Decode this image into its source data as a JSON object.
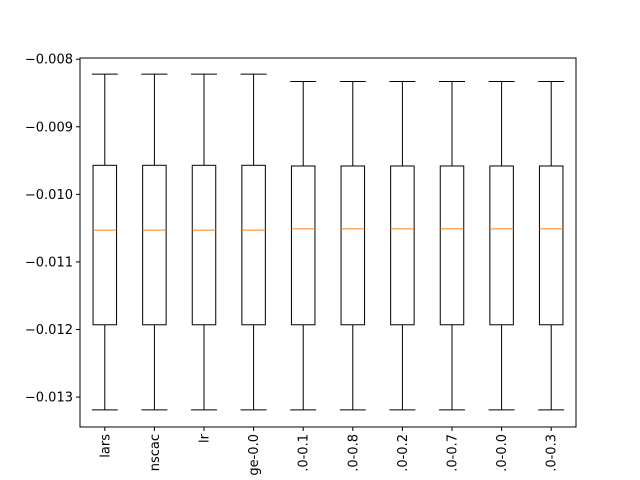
{
  "chart_data": {
    "type": "box",
    "categories": [
      "lars",
      "nscac",
      "lr",
      "ge-0.0",
      ".0-0.1",
      ".0-0.8",
      ".0-0.2",
      ".0-0.7",
      ".0-0.0",
      ".0-0.3"
    ],
    "series": [
      {
        "values": [
          {
            "whisker_high": -0.00822,
            "q3": -0.00957,
            "median": -0.01053,
            "q1": -0.01193,
            "whisker_low": -0.01319
          },
          {
            "whisker_high": -0.00822,
            "q3": -0.00957,
            "median": -0.01053,
            "q1": -0.01193,
            "whisker_low": -0.01319
          },
          {
            "whisker_high": -0.00822,
            "q3": -0.00957,
            "median": -0.01053,
            "q1": -0.01193,
            "whisker_low": -0.01319
          },
          {
            "whisker_high": -0.00822,
            "q3": -0.00957,
            "median": -0.01053,
            "q1": -0.01193,
            "whisker_low": -0.01319
          },
          {
            "whisker_high": -0.00833,
            "q3": -0.00958,
            "median": -0.01051,
            "q1": -0.01193,
            "whisker_low": -0.01319
          },
          {
            "whisker_high": -0.00833,
            "q3": -0.00958,
            "median": -0.01051,
            "q1": -0.01193,
            "whisker_low": -0.01319
          },
          {
            "whisker_high": -0.00833,
            "q3": -0.00958,
            "median": -0.01051,
            "q1": -0.01193,
            "whisker_low": -0.01319
          },
          {
            "whisker_high": -0.00833,
            "q3": -0.00958,
            "median": -0.01051,
            "q1": -0.01193,
            "whisker_low": -0.01319
          },
          {
            "whisker_high": -0.00833,
            "q3": -0.00958,
            "median": -0.01051,
            "q1": -0.01193,
            "whisker_low": -0.01319
          },
          {
            "whisker_high": -0.00833,
            "q3": -0.00958,
            "median": -0.01051,
            "q1": -0.01193,
            "whisker_low": -0.01319
          }
        ]
      }
    ],
    "y_ticks": [
      -0.008,
      -0.009,
      -0.01,
      -0.011,
      -0.012,
      -0.013
    ],
    "y_tick_labels": [
      "−0.008",
      "−0.009",
      "−0.010",
      "−0.011",
      "−0.012",
      "−0.013"
    ],
    "ylim": [
      -0.013443,
      -0.007982
    ],
    "title": "",
    "xlabel": "",
    "ylabel": "",
    "grid": false,
    "x_tick_rotation": "vertical",
    "colors": {
      "box": "#000000",
      "median": "#ff7f0e",
      "axes": "#000000",
      "background": "#ffffff"
    }
  }
}
